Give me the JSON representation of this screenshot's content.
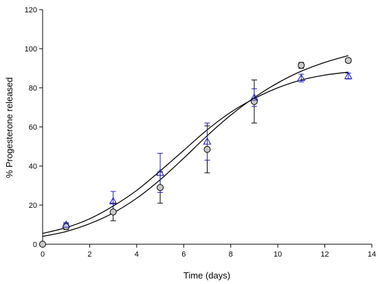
{
  "chart_data": {
    "type": "scatter",
    "xlabel": "Time (days)",
    "ylabel": "% Progesterone released",
    "xlim": [
      0,
      14
    ],
    "ylim": [
      0,
      120
    ],
    "xticks": [
      0,
      2,
      4,
      6,
      8,
      10,
      12,
      14
    ],
    "yticks": [
      0,
      20,
      40,
      60,
      80,
      100,
      120
    ],
    "grid": false,
    "series": [
      {
        "marker": "circle",
        "color": "#000000",
        "fill": "#c8c8c8",
        "x": [
          0,
          1,
          3,
          5,
          7,
          9,
          11,
          13
        ],
        "y": [
          0,
          9,
          16.5,
          29,
          48.5,
          73,
          91.5,
          94
        ],
        "err": [
          0,
          1.5,
          4.5,
          8,
          12,
          11,
          1.5,
          1
        ]
      },
      {
        "marker": "triangle",
        "color": "#2020c0",
        "fill": "none",
        "x": [
          1,
          3,
          5,
          7,
          9,
          11,
          13
        ],
        "y": [
          10,
          22,
          36.5,
          52.5,
          75,
          85,
          86
        ],
        "err": [
          1,
          5,
          10,
          9.5,
          4.5,
          2,
          1.5
        ]
      }
    ],
    "fits": [
      {
        "color": "#000000",
        "x": [
          0,
          1,
          2,
          3,
          4,
          5,
          6,
          7,
          8,
          9,
          10,
          11,
          12,
          13
        ],
        "y": [
          4,
          6.5,
          10.5,
          16,
          23.5,
          33,
          44,
          55.5,
          66,
          75,
          82.5,
          88.5,
          93,
          96.5
        ]
      },
      {
        "color": "#000000",
        "x": [
          0,
          1,
          2,
          3,
          4,
          5,
          6,
          7,
          8,
          9,
          10,
          11,
          12,
          13
        ],
        "y": [
          5.5,
          8.5,
          13,
          19.5,
          27.5,
          37.5,
          48,
          58.5,
          67.5,
          74.5,
          80,
          84,
          86.5,
          88
        ]
      }
    ]
  }
}
